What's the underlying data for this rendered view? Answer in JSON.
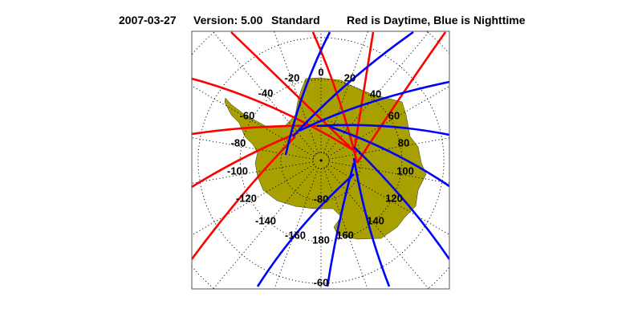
{
  "title": {
    "date": "2007-03-27",
    "version": "Version: 5.00",
    "mode": "Standard",
    "legend": "Red is Daytime, Blue is Nighttime"
  },
  "map": {
    "projection": "south polar stereographic",
    "region": "Antarctica",
    "land_color": "#a8a000",
    "day_color": "#ff0000",
    "night_color": "#0000ff",
    "latitude_labels": [
      "-80",
      "-60"
    ],
    "longitude_labels": [
      "0",
      "20",
      "40",
      "60",
      "80",
      "100",
      "120",
      "140",
      "160",
      "180",
      "-160",
      "-140",
      "-120",
      "-100",
      "-80",
      "-60",
      "-40",
      "-20"
    ]
  }
}
